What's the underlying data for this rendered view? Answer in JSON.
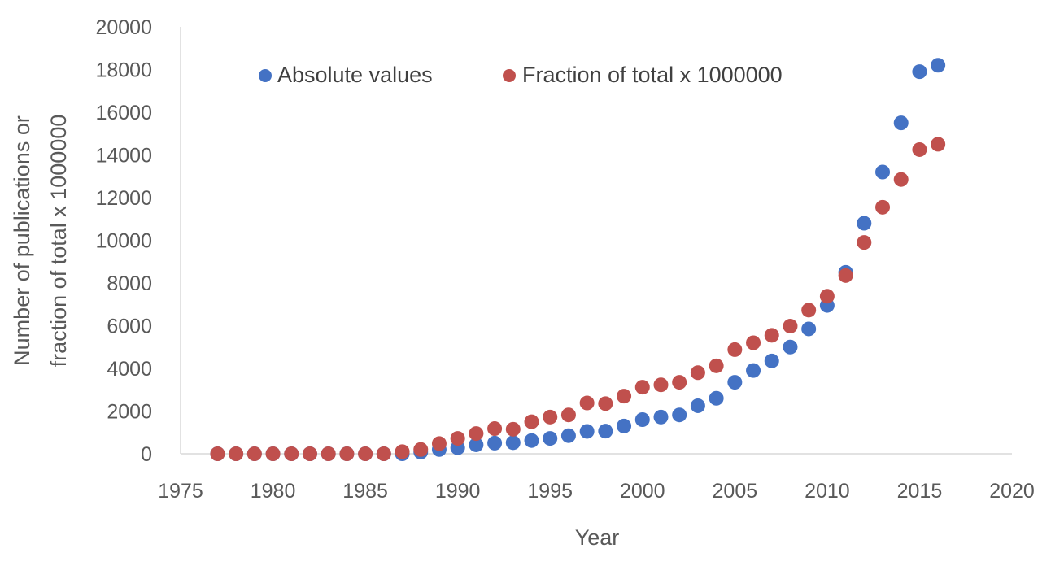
{
  "chart_data": {
    "type": "scatter",
    "title": "",
    "xlabel": "Year",
    "ylabel_lines": [
      "Number of publications or",
      "fraction of total x 1000000"
    ],
    "xlim": [
      1975,
      2020
    ],
    "ylim": [
      0,
      20000
    ],
    "x_ticks": [
      "1975",
      "1980",
      "1985",
      "1990",
      "1995",
      "2000",
      "2005",
      "2010",
      "2015",
      "2020"
    ],
    "y_ticks": [
      "0",
      "2000",
      "4000",
      "6000",
      "8000",
      "10000",
      "12000",
      "14000",
      "16000",
      "18000",
      "20000"
    ],
    "grid": false,
    "legend": "top-inside",
    "series": [
      {
        "name": "Absolute values",
        "color": "#4472C4",
        "points": [
          [
            1977,
            0
          ],
          [
            1978,
            0
          ],
          [
            1979,
            0
          ],
          [
            1980,
            0
          ],
          [
            1981,
            0
          ],
          [
            1982,
            0
          ],
          [
            1983,
            0
          ],
          [
            1984,
            0
          ],
          [
            1985,
            0
          ],
          [
            1986,
            0
          ],
          [
            1987,
            0
          ],
          [
            1988,
            80
          ],
          [
            1989,
            200
          ],
          [
            1990,
            280
          ],
          [
            1991,
            420
          ],
          [
            1992,
            500
          ],
          [
            1993,
            520
          ],
          [
            1994,
            620
          ],
          [
            1995,
            720
          ],
          [
            1996,
            850
          ],
          [
            1997,
            1050
          ],
          [
            1998,
            1060
          ],
          [
            1999,
            1300
          ],
          [
            2000,
            1600
          ],
          [
            2001,
            1720
          ],
          [
            2002,
            1820
          ],
          [
            2003,
            2250
          ],
          [
            2004,
            2600
          ],
          [
            2005,
            3350
          ],
          [
            2006,
            3900
          ],
          [
            2007,
            4350
          ],
          [
            2008,
            5000
          ],
          [
            2009,
            5850
          ],
          [
            2010,
            6950
          ],
          [
            2011,
            8500
          ],
          [
            2012,
            10800
          ],
          [
            2013,
            13200
          ],
          [
            2014,
            15500
          ],
          [
            2015,
            17900
          ],
          [
            2016,
            18200
          ]
        ]
      },
      {
        "name": "Fraction of total x 1000000",
        "color": "#C0504D",
        "points": [
          [
            1977,
            0
          ],
          [
            1978,
            0
          ],
          [
            1979,
            0
          ],
          [
            1980,
            0
          ],
          [
            1981,
            0
          ],
          [
            1982,
            0
          ],
          [
            1983,
            0
          ],
          [
            1984,
            0
          ],
          [
            1985,
            0
          ],
          [
            1986,
            0
          ],
          [
            1987,
            100
          ],
          [
            1988,
            200
          ],
          [
            1989,
            480
          ],
          [
            1990,
            720
          ],
          [
            1991,
            950
          ],
          [
            1992,
            1180
          ],
          [
            1993,
            1150
          ],
          [
            1994,
            1500
          ],
          [
            1995,
            1720
          ],
          [
            1996,
            1820
          ],
          [
            1997,
            2380
          ],
          [
            1998,
            2350
          ],
          [
            1999,
            2700
          ],
          [
            2000,
            3120
          ],
          [
            2001,
            3230
          ],
          [
            2002,
            3350
          ],
          [
            2003,
            3800
          ],
          [
            2004,
            4120
          ],
          [
            2005,
            4880
          ],
          [
            2006,
            5200
          ],
          [
            2007,
            5550
          ],
          [
            2008,
            5980
          ],
          [
            2009,
            6730
          ],
          [
            2010,
            7380
          ],
          [
            2011,
            8350
          ],
          [
            2012,
            9900
          ],
          [
            2013,
            11550
          ],
          [
            2014,
            12850
          ],
          [
            2015,
            14250
          ],
          [
            2016,
            14500
          ]
        ]
      }
    ]
  }
}
